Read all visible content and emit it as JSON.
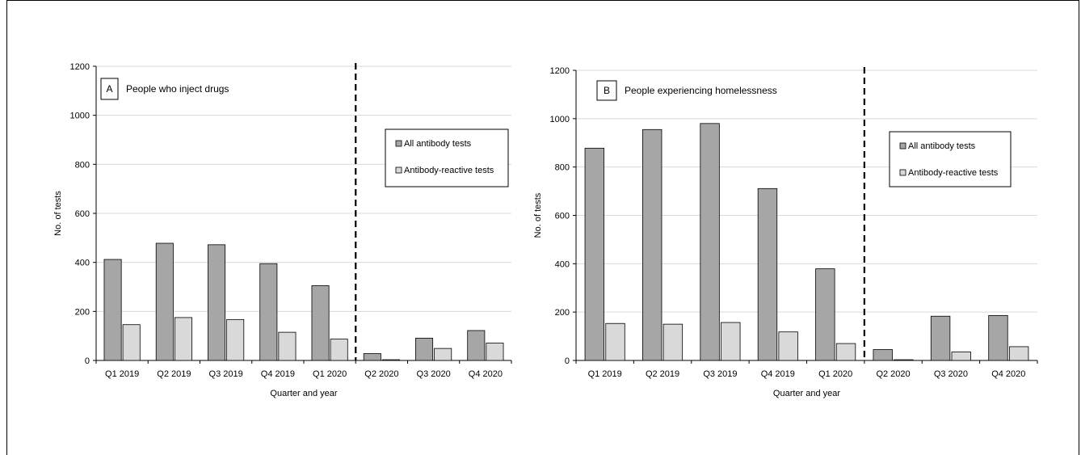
{
  "colors": {
    "all_tests": "#a6a6a6",
    "reactive_tests": "#d9d9d9",
    "bar_stroke": "#000000",
    "grid": "#d9d9d9"
  },
  "chart_data": [
    {
      "type": "bar",
      "panel_letter": "A",
      "title": "People who inject drugs",
      "xlabel": "Quarter and year",
      "ylabel": "No. of tests",
      "ylim": [
        0,
        1200
      ],
      "yticks": [
        0,
        200,
        400,
        600,
        800,
        1000,
        1200
      ],
      "grid": true,
      "legend_position": "right",
      "divider_after_category": "Q1 2020",
      "categories": [
        "Q1 2019",
        "Q2 2019",
        "Q3 2019",
        "Q4 2019",
        "Q1 2020",
        "Q2 2020",
        "Q3 2020",
        "Q4 2020"
      ],
      "series": [
        {
          "name": "All antibody tests",
          "values": [
            412,
            478,
            472,
            395,
            305,
            28,
            91,
            122
          ]
        },
        {
          "name": "Antibody-reactive tests",
          "values": [
            146,
            175,
            167,
            115,
            87,
            3,
            49,
            71
          ]
        }
      ]
    },
    {
      "type": "bar",
      "panel_letter": "B",
      "title": "People experiencing homelessness",
      "xlabel": "Quarter and year",
      "ylabel": "No. of tests",
      "ylim": [
        0,
        1200
      ],
      "yticks": [
        0,
        200,
        400,
        600,
        800,
        1000,
        1200
      ],
      "grid": true,
      "legend_position": "right",
      "divider_after_category": "Q1 2020",
      "categories": [
        "Q1 2019",
        "Q2 2019",
        "Q3 2019",
        "Q4 2019",
        "Q1 2020",
        "Q2 2020",
        "Q3 2020",
        "Q4 2020"
      ],
      "series": [
        {
          "name": "All antibody tests",
          "values": [
            878,
            955,
            980,
            711,
            379,
            45,
            183,
            186
          ]
        },
        {
          "name": "Antibody-reactive tests",
          "values": [
            153,
            150,
            157,
            118,
            70,
            3,
            35,
            57
          ]
        }
      ]
    }
  ]
}
